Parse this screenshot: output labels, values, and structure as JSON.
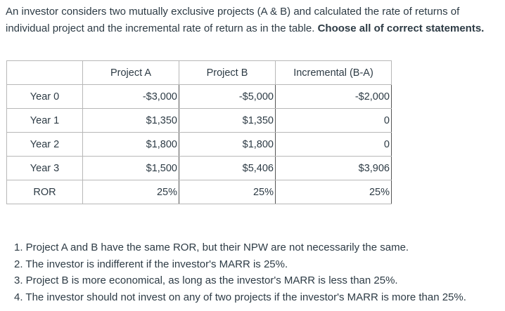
{
  "question": {
    "text": "An investor considers two mutually exclusive projects (A & B) and calculated the rate of returns of individual project and the incremental rate of return as in the table. ",
    "emphasis": "Choose all of correct statements."
  },
  "table": {
    "headers": [
      "",
      "Project A",
      "Project B",
      "Incremental (B-A)"
    ],
    "rows": [
      {
        "label": "Year 0",
        "a": "-$3,000",
        "b": "-$5,000",
        "inc": "-$2,000"
      },
      {
        "label": "Year 1",
        "a": "$1,350",
        "b": "$1,350",
        "inc": "0"
      },
      {
        "label": "Year 2",
        "a": "$1,800",
        "b": "$1,800",
        "inc": "0"
      },
      {
        "label": "Year 3",
        "a": "$1,500",
        "b": "$5,406",
        "inc": "$3,906"
      },
      {
        "label": "ROR",
        "a": "25%",
        "b": "25%",
        "inc": "25%"
      }
    ]
  },
  "options": [
    "1. Project A and B have the same ROR, but their NPW are not necessarily the same.",
    "2. The investor is indifferent if the investor's MARR is 25%.",
    "3. Project B is more economical, as long as the investor's MARR is less than 25%.",
    "4. The investor should not invest on any of two projects if the investor's MARR is more than 25%."
  ]
}
